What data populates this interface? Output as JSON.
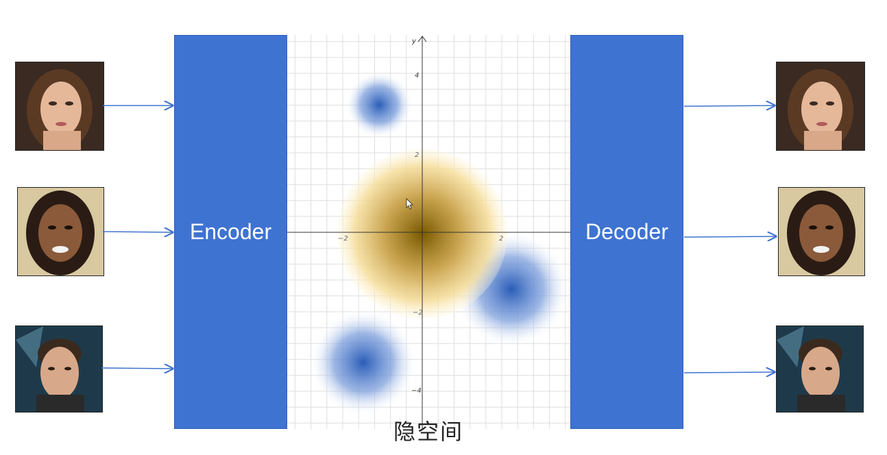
{
  "encoder": {
    "label": "Encoder"
  },
  "decoder": {
    "label": "Decoder"
  },
  "latent_space": {
    "caption": "隐空间",
    "axis_label_y": "y",
    "tick_labels": {
      "y_4": "4",
      "y_2": "2",
      "x_neg2": "−2",
      "x_2": "2",
      "y_neg2": "−2",
      "y_neg4": "−4"
    },
    "colors": {
      "gaussian_blue": "#2a5db8",
      "gaussian_gold": "#8a6400",
      "grid": "#d9d9d9",
      "axis": "#333333"
    }
  },
  "inputs": [
    {
      "icon": "female-face-photo"
    },
    {
      "icon": "female-face-photo"
    },
    {
      "icon": "male-face-photo"
    }
  ],
  "outputs": [
    {
      "icon": "female-face-photo"
    },
    {
      "icon": "female-face-photo"
    },
    {
      "icon": "male-face-photo"
    }
  ],
  "colors": {
    "block": "#3f73d1",
    "arrow": "#3f73d1"
  }
}
